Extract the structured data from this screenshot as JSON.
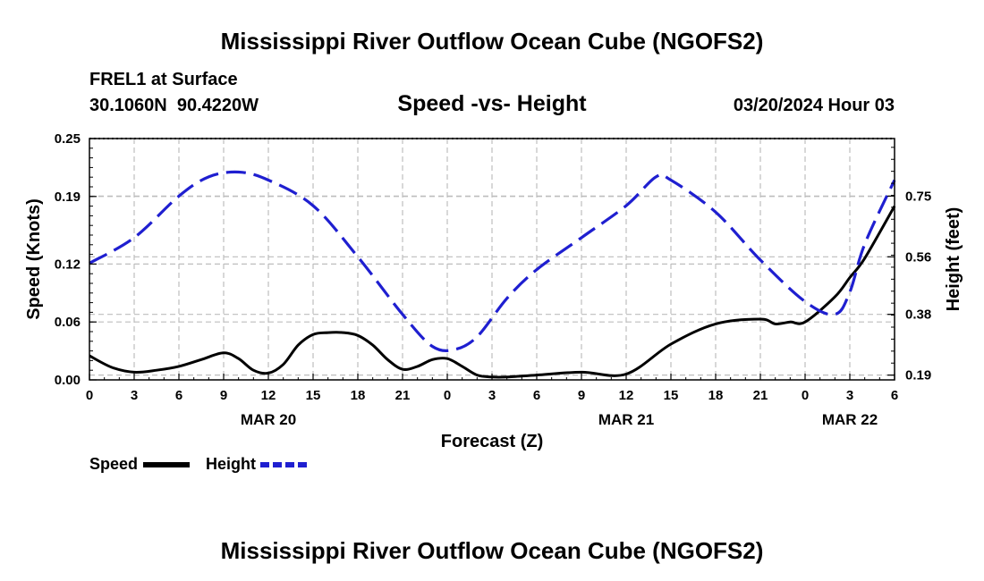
{
  "chart_data": {
    "type": "line",
    "title": "Mississippi River Outflow Ocean Cube (NGOFS2)",
    "footer_title": "Mississippi River Outflow Ocean Cube (NGOFS2)",
    "station": "FREL1 at Surface",
    "coords": "30.1060N  90.4220W",
    "subtitle": "Speed -vs- Height",
    "timestamp": "03/20/2024 Hour 03",
    "xlabel": "Forecast (Z)",
    "ylabel_left": "Speed (Knots)",
    "ylabel_right": "Height (feet)",
    "x_range": [
      0,
      54
    ],
    "x_ticks": [
      0,
      3,
      6,
      9,
      12,
      15,
      18,
      21,
      24,
      27,
      30,
      33,
      36,
      39,
      42,
      45,
      48,
      51,
      54
    ],
    "x_tick_labels": [
      "0",
      "3",
      "6",
      "9",
      "12",
      "15",
      "18",
      "21",
      "0",
      "3",
      "6",
      "9",
      "12",
      "15",
      "18",
      "21",
      "0",
      "3",
      "6"
    ],
    "date_labels": [
      {
        "x": 12,
        "label": "MAR 20"
      },
      {
        "x": 36,
        "label": "MAR 21"
      },
      {
        "x": 51,
        "label": "MAR 22"
      }
    ],
    "left_ylim": [
      0,
      0.25
    ],
    "left_ticks": [
      0,
      0.06,
      0.12,
      0.19,
      0.25
    ],
    "left_tick_labels": [
      "0.00",
      "0.06",
      "0.12",
      "0.19",
      "0.25"
    ],
    "right_ylim": [
      0.175,
      0.93
    ],
    "right_ticks": [
      0.19,
      0.38,
      0.56,
      0.75
    ],
    "right_tick_labels": [
      "0.19",
      "0.38",
      "0.56",
      "0.75"
    ],
    "series": [
      {
        "name": "Speed",
        "axis": "left",
        "color": "#000000",
        "dash": "solid",
        "x": [
          0,
          1.5,
          3,
          4.5,
          6,
          7.5,
          9,
          10,
          11,
          12,
          13,
          14,
          15,
          16,
          17,
          18,
          19,
          20,
          21,
          22,
          23,
          24,
          25,
          26,
          27,
          28,
          30,
          33,
          36,
          39,
          42,
          45,
          46,
          47,
          48,
          50,
          51,
          52,
          54
        ],
        "values": [
          0.025,
          0.013,
          0.008,
          0.01,
          0.014,
          0.021,
          0.028,
          0.022,
          0.01,
          0.007,
          0.016,
          0.036,
          0.047,
          0.049,
          0.049,
          0.046,
          0.036,
          0.021,
          0.011,
          0.014,
          0.021,
          0.022,
          0.014,
          0.005,
          0.003,
          0.003,
          0.005,
          0.008,
          0.006,
          0.037,
          0.058,
          0.063,
          0.058,
          0.06,
          0.06,
          0.086,
          0.106,
          0.126,
          0.18
        ]
      },
      {
        "name": "Height",
        "axis": "right",
        "color": "#1f1fd0",
        "dash": "dashed",
        "x": [
          0,
          3,
          6,
          8,
          10,
          12,
          15,
          18,
          21,
          23,
          24.5,
          26,
          28,
          30,
          33,
          36,
          38,
          39,
          42,
          45,
          48,
          50,
          51,
          52,
          54
        ],
        "values": [
          0.54,
          0.62,
          0.75,
          0.81,
          0.825,
          0.8,
          0.72,
          0.56,
          0.38,
          0.28,
          0.27,
          0.31,
          0.43,
          0.52,
          0.62,
          0.72,
          0.81,
          0.8,
          0.7,
          0.55,
          0.42,
          0.38,
          0.45,
          0.6,
          0.8
        ]
      }
    ],
    "legend": [
      {
        "label": "Speed",
        "color": "#000000",
        "dash": "solid"
      },
      {
        "label": "Height",
        "color": "#1f1fd0",
        "dash": "dashed"
      }
    ]
  }
}
